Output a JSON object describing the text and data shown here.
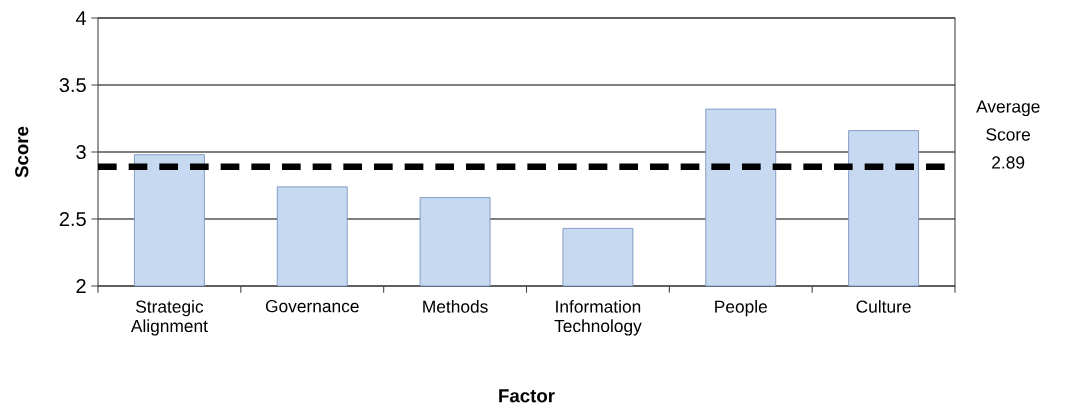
{
  "chart_data": {
    "type": "bar",
    "xlabel": "Factor",
    "ylabel": "Score",
    "categories": [
      "Strategic Alignment",
      "Governance",
      "Methods",
      "Information Technology",
      "People",
      "Culture"
    ],
    "values": [
      2.98,
      2.74,
      2.66,
      2.43,
      3.32,
      3.16
    ],
    "color": "#c6d9f1",
    "ylim": [
      2,
      4
    ],
    "yticks": [
      2,
      2.5,
      3,
      3.5,
      4
    ],
    "grid": "y",
    "ref_lines": [
      {
        "axis": "y",
        "value": 2.89,
        "label": "Average Score 2.89",
        "color": "#000000",
        "line_style": "dashed"
      }
    ]
  }
}
